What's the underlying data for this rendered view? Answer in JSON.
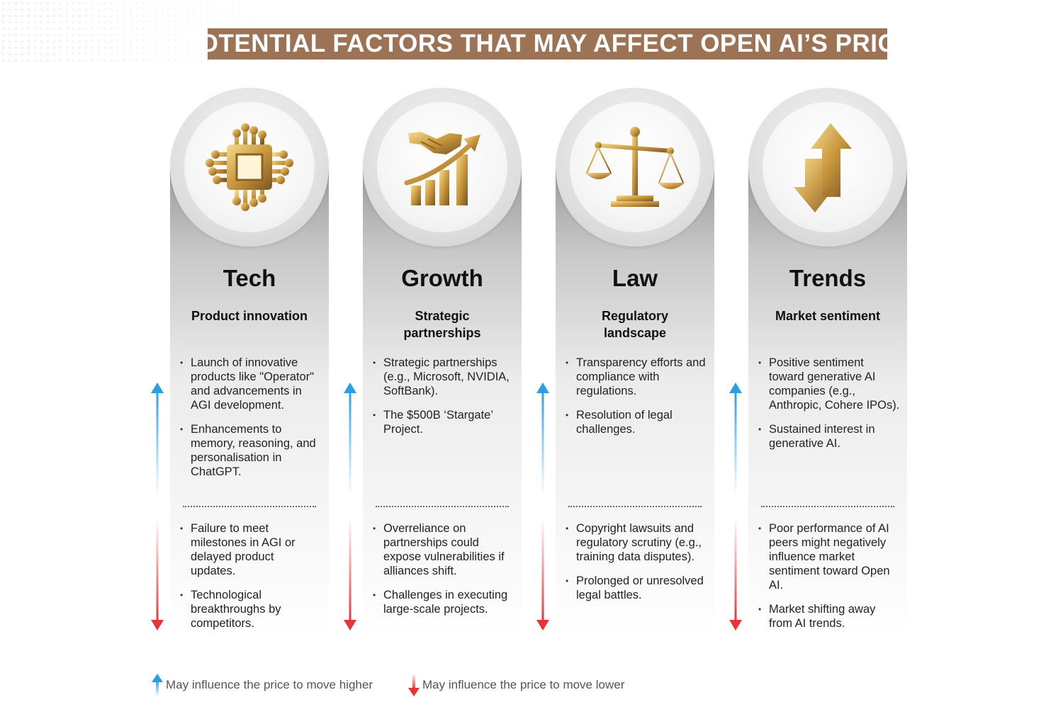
{
  "title": "POTENTIAL FACTORS THAT MAY AFFECT OPEN AI’S PRICE",
  "colors": {
    "banner": "#9d7355",
    "up_arrow": "#2a9fe6",
    "down_arrow": "#e5343a",
    "gold": "#d2a54a"
  },
  "columns": [
    {
      "icon": "chip-icon",
      "title": "Tech",
      "subtitle": "Product innovation",
      "positive": [
        "Launch of innovative products like \"Operator\" and advancements in AGI development.",
        "Enhancements to memory, reasoning, and personalisation in ChatGPT."
      ],
      "negative": [
        "Failure to meet milestones in AGI or delayed product updates.",
        "Technological breakthroughs by competitors."
      ]
    },
    {
      "icon": "handshake-growth-icon",
      "title": "Growth",
      "subtitle": "Strategic partnerships",
      "positive": [
        "Strategic partnerships (e.g., Microsoft, NVIDIA, SoftBank).",
        "The $500B ‘Stargate’ Project."
      ],
      "negative": [
        "Overreliance on partnerships could expose vulnerabilities if alliances shift.",
        "Challenges in executing large-scale projects."
      ]
    },
    {
      "icon": "scales-icon",
      "title": "Law",
      "subtitle": "Regulatory landscape",
      "positive": [
        "Transparency efforts and compliance with regulations.",
        "Resolution of legal challenges."
      ],
      "negative": [
        "Copyright lawsuits and regulatory scrutiny (e.g., training data disputes).",
        "Prolonged or unresolved legal battles."
      ]
    },
    {
      "icon": "up-down-arrows-icon",
      "title": "Trends",
      "subtitle": "Market sentiment",
      "positive": [
        "Positive sentiment toward generative AI companies (e.g., Anthropic, Cohere IPOs).",
        "Sustained interest in generative AI."
      ],
      "negative": [
        "Poor performance of AI peers might negatively influence market sentiment toward Open AI.",
        "Market shifting away from AI trends."
      ]
    }
  ],
  "legend": {
    "higher": "May influence the price to move higher",
    "lower": "May influence the price to move lower"
  }
}
